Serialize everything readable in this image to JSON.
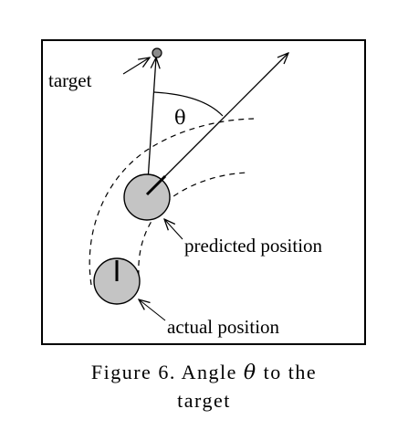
{
  "labels": {
    "target": "target",
    "theta": "θ",
    "predicted_position": "predicted position",
    "actual_position": "actual position"
  },
  "caption": {
    "before": "Figure 6. Angle ",
    "symbol": "θ",
    "after": " to the",
    "line2": "target"
  },
  "colors": {
    "robot_fill": "#c4c4c4",
    "target_fill": "#8a8a8a",
    "stroke": "#000000"
  }
}
